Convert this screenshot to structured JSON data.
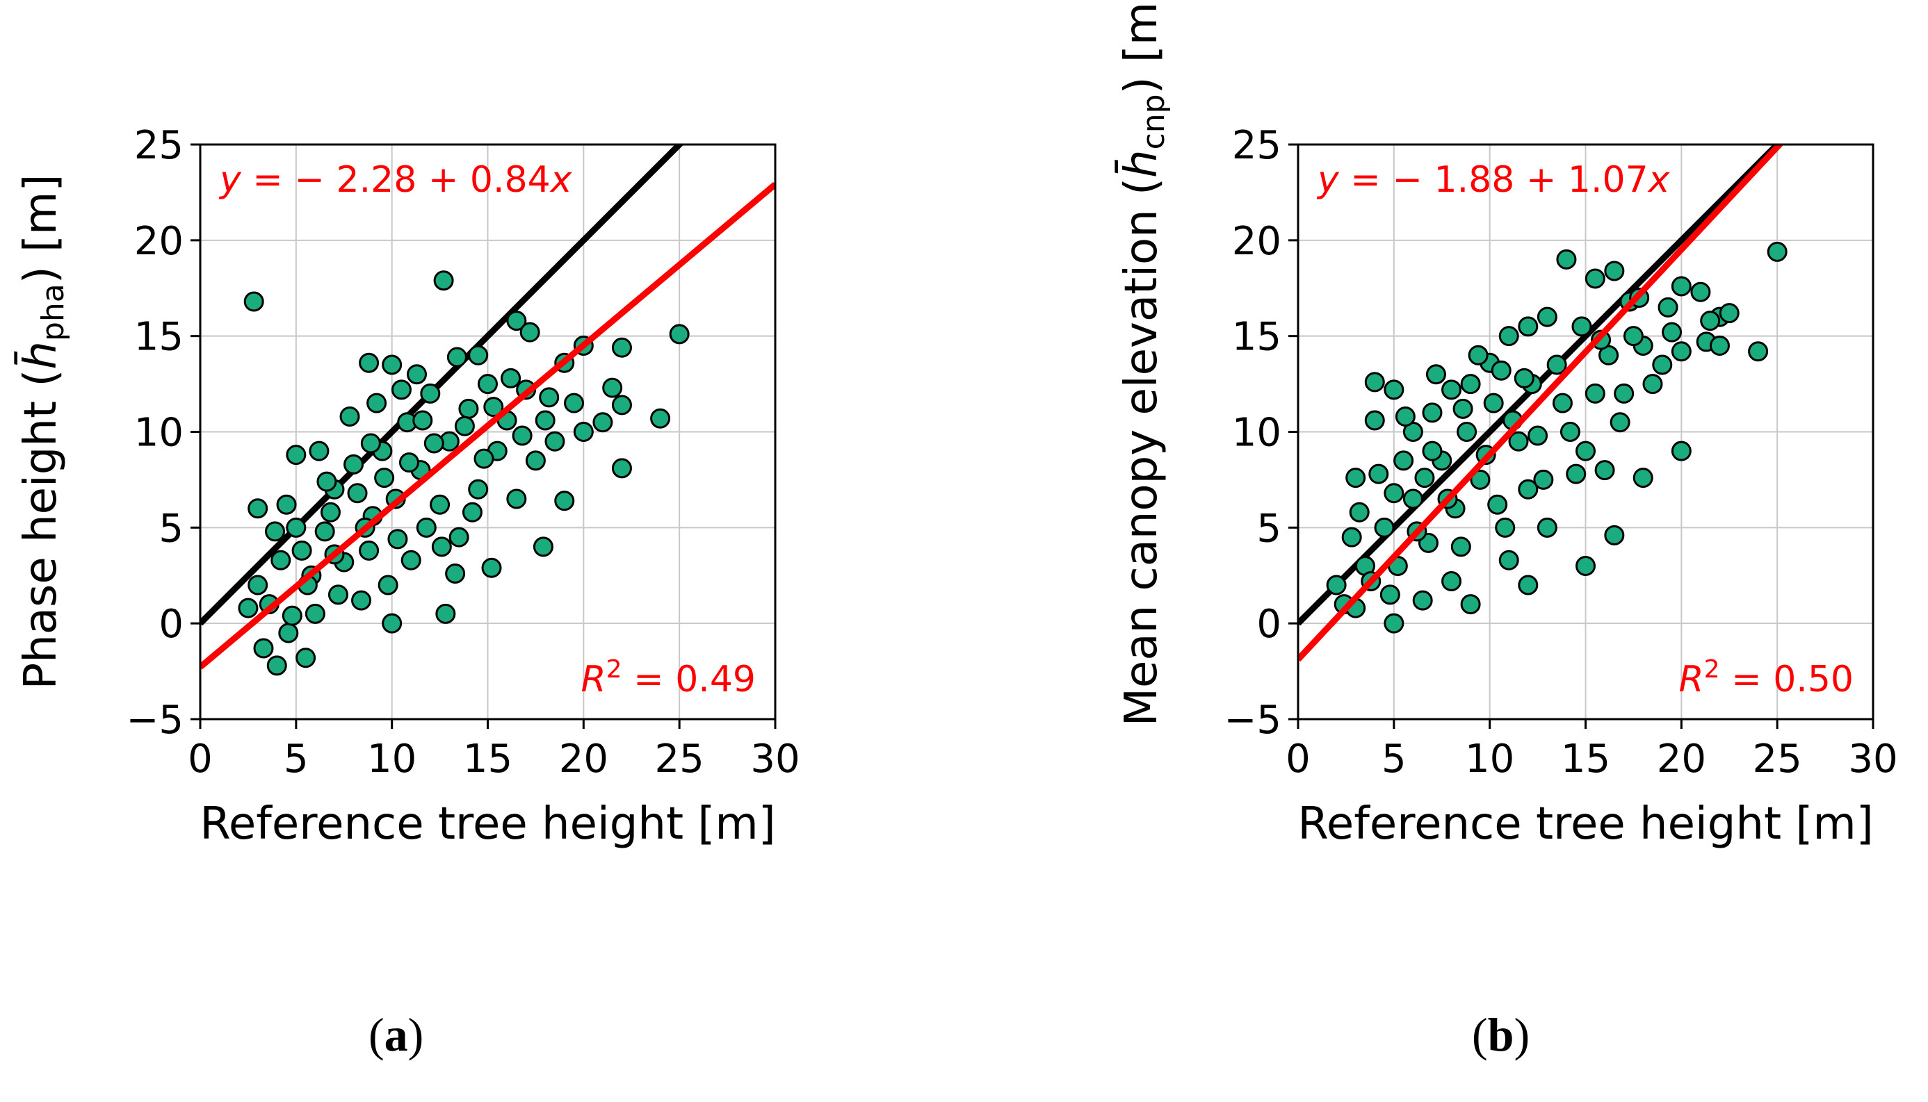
{
  "captions": {
    "a": {
      "open": "(",
      "letter": "a",
      "close": ")"
    },
    "b": {
      "open": "(",
      "letter": "b",
      "close": ")"
    }
  },
  "colors": {
    "marker_fill": "#1aab7e",
    "marker_edge": "#000000",
    "identity_line": "#000000",
    "fit_line": "#ff0000",
    "grid": "#c8c8c8",
    "annotation": "#ff0000"
  },
  "chart_data": [
    {
      "id": "a",
      "type": "scatter",
      "xlabel": "Reference tree height [m]",
      "ylabel": {
        "prefix": "Phase height (",
        "symbol": "h̄",
        "subscript": "pha",
        "suffix": ") [m]"
      },
      "xlim": [
        0,
        30
      ],
      "ylim": [
        -5,
        25
      ],
      "xticks": [
        0,
        5,
        10,
        15,
        20,
        25,
        30
      ],
      "yticks": [
        -5,
        0,
        5,
        10,
        15,
        20,
        25
      ],
      "xtick_labels": [
        "0",
        "5",
        "10",
        "15",
        "20",
        "25",
        "30"
      ],
      "ytick_labels": [
        "−5",
        "0",
        "5",
        "10",
        "15",
        "20",
        "25"
      ],
      "grid": true,
      "identity_line": {
        "intercept": 0,
        "slope": 1
      },
      "fit": {
        "intercept": -2.28,
        "slope": 0.84
      },
      "equation": {
        "y": "y",
        "mid": " = − 2.28 + 0.84",
        "x": "x"
      },
      "r2": {
        "r": "R",
        "sup": "2",
        "rest": " = 0.49"
      },
      "sample_points": [
        [
          2.8,
          16.8
        ],
        [
          12.7,
          17.9
        ],
        [
          25.0,
          15.1
        ],
        [
          24.0,
          10.7
        ],
        [
          22.0,
          8.1
        ],
        [
          19.0,
          6.4
        ],
        [
          17.9,
          4.0
        ],
        [
          15.2,
          2.9
        ],
        [
          12.8,
          0.5
        ],
        [
          10.0,
          0.0
        ],
        [
          5.5,
          -1.8
        ],
        [
          4.0,
          -2.2
        ],
        [
          3.3,
          -1.3
        ],
        [
          4.6,
          -0.5
        ],
        [
          3.0,
          6.0
        ],
        [
          5.0,
          8.8
        ],
        [
          8.8,
          13.6
        ],
        [
          10.0,
          13.5
        ],
        [
          13.4,
          13.9
        ],
        [
          14.5,
          14.0
        ],
        [
          16.5,
          15.8
        ],
        [
          17.2,
          15.2
        ],
        [
          19.0,
          13.6
        ],
        [
          20.0,
          14.5
        ],
        [
          22.0,
          14.4
        ],
        [
          21.5,
          12.3
        ],
        [
          22.0,
          11.4
        ],
        [
          21.0,
          10.5
        ],
        [
          20.0,
          10.0
        ],
        [
          18.0,
          10.6
        ],
        [
          3.0,
          2.0
        ],
        [
          4.2,
          3.3
        ],
        [
          5.0,
          5.0
        ],
        [
          5.8,
          2.5
        ],
        [
          6.5,
          4.8
        ],
        [
          7.0,
          7.0
        ],
        [
          7.5,
          3.2
        ],
        [
          8.0,
          8.3
        ],
        [
          8.4,
          1.2
        ],
        [
          9.0,
          5.6
        ],
        [
          9.5,
          9.0
        ],
        [
          10.2,
          6.5
        ],
        [
          10.8,
          10.5
        ],
        [
          11.0,
          3.3
        ],
        [
          11.5,
          8.0
        ],
        [
          12.0,
          12.0
        ],
        [
          12.5,
          6.2
        ],
        [
          13.0,
          9.5
        ],
        [
          13.5,
          4.5
        ],
        [
          14.0,
          11.2
        ],
        [
          14.5,
          7.0
        ],
        [
          15.0,
          12.5
        ],
        [
          15.5,
          9.0
        ],
        [
          16.0,
          10.6
        ],
        [
          16.5,
          6.5
        ],
        [
          17.0,
          12.2
        ],
        [
          17.5,
          8.5
        ],
        [
          18.5,
          9.5
        ],
        [
          6.0,
          0.5
        ],
        [
          7.2,
          1.5
        ],
        [
          8.8,
          3.8
        ],
        [
          9.8,
          2.0
        ],
        [
          11.8,
          5.0
        ],
        [
          13.3,
          2.6
        ],
        [
          4.5,
          6.2
        ],
        [
          6.2,
          9.0
        ],
        [
          7.8,
          10.8
        ],
        [
          9.2,
          11.5
        ],
        [
          10.5,
          12.2
        ],
        [
          11.3,
          13.0
        ],
        [
          3.6,
          1.0
        ],
        [
          5.3,
          3.8
        ],
        [
          6.8,
          5.8
        ],
        [
          8.2,
          6.8
        ],
        [
          9.6,
          7.6
        ],
        [
          10.9,
          8.4
        ],
        [
          12.2,
          9.4
        ],
        [
          13.8,
          10.3
        ],
        [
          15.3,
          11.3
        ],
        [
          16.8,
          9.8
        ],
        [
          14.2,
          5.8
        ],
        [
          12.6,
          4.0
        ],
        [
          10.3,
          4.4
        ],
        [
          8.6,
          5.0
        ],
        [
          7.0,
          3.6
        ],
        [
          5.6,
          2.0
        ],
        [
          4.8,
          0.4
        ],
        [
          3.9,
          4.8
        ],
        [
          6.6,
          7.4
        ],
        [
          8.9,
          9.4
        ],
        [
          11.6,
          10.6
        ],
        [
          14.8,
          8.6
        ],
        [
          16.2,
          12.8
        ],
        [
          18.2,
          11.8
        ],
        [
          19.5,
          11.5
        ],
        [
          2.5,
          0.8
        ]
      ]
    },
    {
      "id": "b",
      "type": "scatter",
      "xlabel": "Reference tree height [m]",
      "ylabel": {
        "prefix": "Mean canopy elevation (",
        "symbol": "h̄",
        "subscript": "cnp",
        "suffix": ") [m]"
      },
      "xlim": [
        0,
        30
      ],
      "ylim": [
        -5,
        25
      ],
      "xticks": [
        0,
        5,
        10,
        15,
        20,
        25,
        30
      ],
      "yticks": [
        -5,
        0,
        5,
        10,
        15,
        20,
        25
      ],
      "xtick_labels": [
        "0",
        "5",
        "10",
        "15",
        "20",
        "25",
        "30"
      ],
      "ytick_labels": [
        "−5",
        "0",
        "5",
        "10",
        "15",
        "20",
        "25"
      ],
      "grid": true,
      "identity_line": {
        "intercept": 0,
        "slope": 1
      },
      "fit": {
        "intercept": -1.88,
        "slope": 1.07
      },
      "equation": {
        "y": "y",
        "mid": " = − 1.88 + 1.07",
        "x": "x"
      },
      "r2": {
        "r": "R",
        "sup": "2",
        "rest": " = 0.50"
      },
      "sample_points": [
        [
          25.0,
          19.4
        ],
        [
          24.0,
          14.2
        ],
        [
          14.0,
          19.0
        ],
        [
          15.0,
          3.0
        ],
        [
          16.5,
          4.6
        ],
        [
          20.0,
          9.0
        ],
        [
          18.0,
          7.6
        ],
        [
          12.0,
          2.0
        ],
        [
          9.0,
          1.0
        ],
        [
          5.0,
          0.0
        ],
        [
          3.0,
          7.6
        ],
        [
          4.0,
          10.6
        ],
        [
          4.0,
          12.6
        ],
        [
          5.0,
          12.2
        ],
        [
          2.0,
          2.0
        ],
        [
          22.0,
          16.0
        ],
        [
          21.0,
          17.3
        ],
        [
          20.0,
          17.6
        ],
        [
          22.5,
          16.2
        ],
        [
          21.3,
          14.7
        ],
        [
          22.0,
          14.5
        ],
        [
          20.0,
          14.2
        ],
        [
          19.3,
          16.5
        ],
        [
          18.0,
          14.5
        ],
        [
          16.5,
          18.4
        ],
        [
          15.5,
          18.0
        ],
        [
          17.3,
          16.8
        ],
        [
          13.0,
          16.0
        ],
        [
          12.0,
          15.5
        ],
        [
          11.0,
          15.0
        ],
        [
          10.0,
          13.6
        ],
        [
          9.0,
          12.5
        ],
        [
          8.0,
          12.2
        ],
        [
          7.0,
          11.0
        ],
        [
          6.0,
          10.0
        ],
        [
          5.5,
          8.5
        ],
        [
          3.5,
          3.0
        ],
        [
          4.5,
          5.0
        ],
        [
          5.2,
          3.0
        ],
        [
          6.0,
          6.5
        ],
        [
          6.8,
          4.2
        ],
        [
          7.5,
          8.5
        ],
        [
          8.2,
          6.0
        ],
        [
          8.8,
          10.0
        ],
        [
          9.5,
          7.5
        ],
        [
          10.2,
          11.5
        ],
        [
          10.8,
          5.0
        ],
        [
          11.5,
          9.5
        ],
        [
          12.2,
          12.5
        ],
        [
          12.8,
          7.5
        ],
        [
          13.5,
          13.5
        ],
        [
          14.2,
          10.0
        ],
        [
          14.8,
          15.5
        ],
        [
          15.5,
          12.0
        ],
        [
          16.2,
          14.0
        ],
        [
          16.8,
          10.5
        ],
        [
          17.5,
          15.0
        ],
        [
          18.5,
          12.5
        ],
        [
          19.0,
          13.5
        ],
        [
          13.0,
          5.0
        ],
        [
          11.0,
          3.3
        ],
        [
          8.0,
          2.2
        ],
        [
          6.5,
          1.2
        ],
        [
          4.8,
          1.5
        ],
        [
          3.8,
          2.2
        ],
        [
          2.8,
          4.5
        ],
        [
          3.2,
          5.8
        ],
        [
          4.2,
          7.8
        ],
        [
          5.6,
          10.8
        ],
        [
          7.2,
          13.0
        ],
        [
          9.4,
          14.0
        ],
        [
          10.6,
          13.2
        ],
        [
          11.8,
          12.8
        ],
        [
          13.8,
          11.5
        ],
        [
          15.0,
          9.0
        ],
        [
          16.0,
          8.0
        ],
        [
          17.0,
          12.0
        ],
        [
          12.5,
          9.8
        ],
        [
          9.8,
          8.8
        ],
        [
          7.8,
          6.5
        ],
        [
          6.2,
          4.8
        ],
        [
          5.0,
          6.8
        ],
        [
          8.5,
          4.0
        ],
        [
          10.4,
          6.2
        ],
        [
          12.0,
          7.0
        ],
        [
          14.5,
          7.8
        ],
        [
          15.8,
          14.8
        ],
        [
          17.8,
          17.0
        ],
        [
          19.5,
          15.2
        ],
        [
          21.5,
          15.8
        ],
        [
          2.4,
          1.0
        ],
        [
          3.0,
          0.8
        ],
        [
          7.0,
          9.0
        ],
        [
          8.6,
          11.2
        ],
        [
          6.6,
          7.6
        ],
        [
          11.2,
          10.6
        ]
      ]
    }
  ]
}
